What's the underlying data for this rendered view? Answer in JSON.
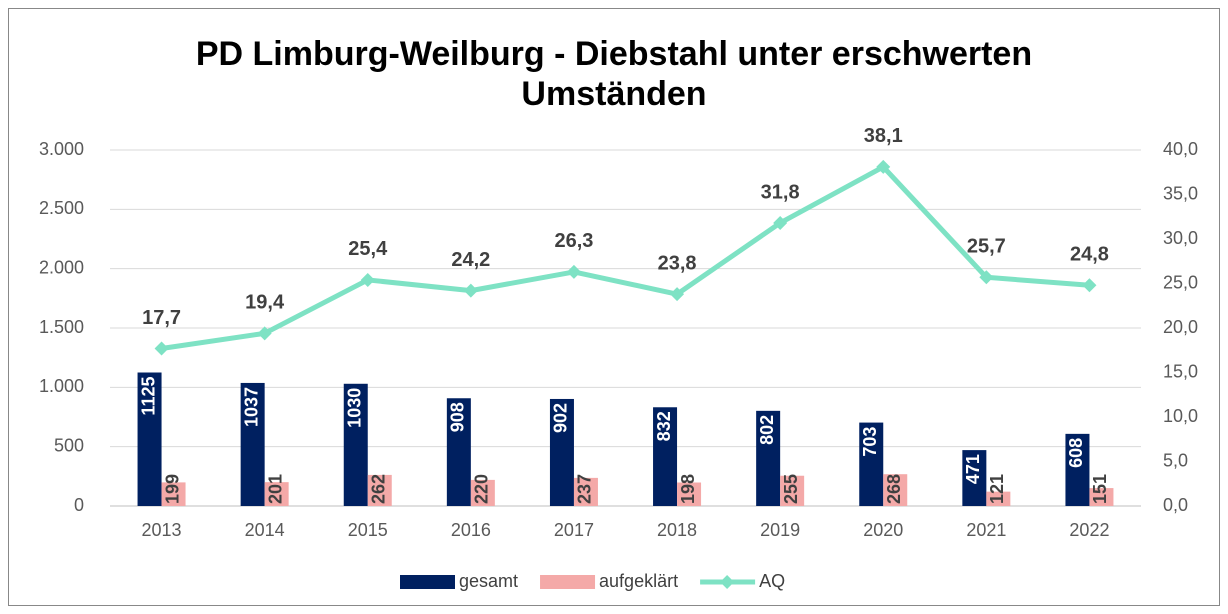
{
  "chart_data": {
    "type": "bar-line",
    "title": "PD Limburg-Weilburg - Diebstahl unter erschwerten Umständen",
    "categories": [
      "2013",
      "2014",
      "2015",
      "2016",
      "2017",
      "2018",
      "2019",
      "2020",
      "2021",
      "2022"
    ],
    "series": [
      {
        "name": "gesamt",
        "type": "bar",
        "color": "#002060",
        "values": [
          1125,
          1037,
          1030,
          908,
          902,
          832,
          802,
          703,
          471,
          608
        ]
      },
      {
        "name": "aufgeklärt",
        "type": "bar",
        "color": "#f4a9a8",
        "values": [
          199,
          201,
          262,
          220,
          237,
          198,
          255,
          268,
          121,
          151
        ]
      },
      {
        "name": "AQ",
        "type": "line",
        "axis": "y2",
        "color": "#7ee2c4",
        "values": [
          17.7,
          19.4,
          25.4,
          24.2,
          26.3,
          23.8,
          31.8,
          38.1,
          25.7,
          24.8
        ],
        "value_labels": [
          "17,7",
          "19,4",
          "25,4",
          "24,2",
          "26,3",
          "23,8",
          "31,8",
          "38,1",
          "25,7",
          "24,8"
        ]
      }
    ],
    "ylim": [
      0,
      3000
    ],
    "yticks": [
      0,
      500,
      {
        "value": 1000,
        "label": "1.000"
      },
      {
        "value": 1500,
        "label": "1.500"
      },
      {
        "value": 2000,
        "label": "2.000"
      },
      {
        "value": 2500,
        "label": "2.500"
      },
      {
        "value": 3000,
        "label": "3.000"
      }
    ],
    "y2lim": [
      0,
      40
    ],
    "y2ticks": [
      {
        "value": 0,
        "label": "0,0"
      },
      {
        "value": 5,
        "label": "5,0"
      },
      {
        "value": 10,
        "label": "10,0"
      },
      {
        "value": 15,
        "label": "15,0"
      },
      {
        "value": 20,
        "label": "20,0"
      },
      {
        "value": 25,
        "label": "25,0"
      },
      {
        "value": 30,
        "label": "30,0"
      },
      {
        "value": 35,
        "label": "35,0"
      },
      {
        "value": 40,
        "label": "40,0"
      }
    ],
    "grid": true,
    "legend": "bottom"
  }
}
